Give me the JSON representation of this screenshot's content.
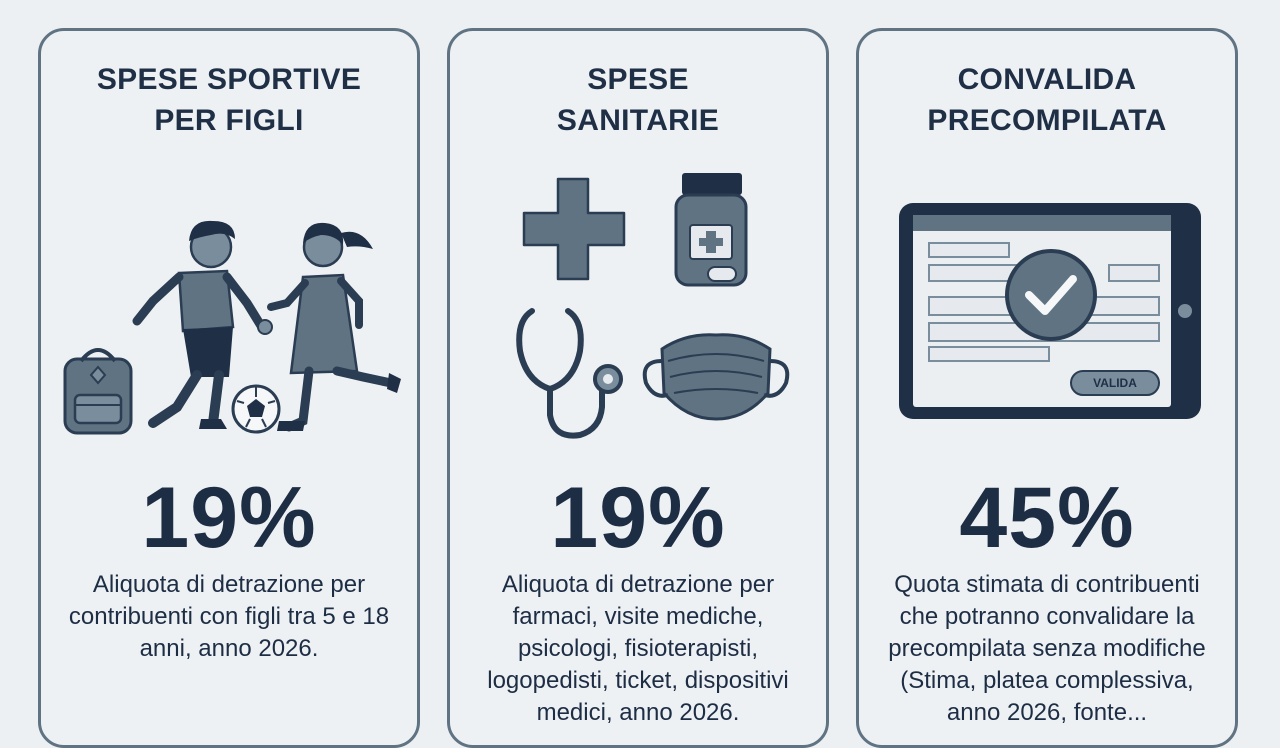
{
  "cards": [
    {
      "title_lines": [
        "SPESE SPORTIVE",
        "PER FIGLI"
      ],
      "value": "19%",
      "description": "Aliquota di detrazione per contribuenti con figli tra 5 e 18 anni, anno 2026.",
      "icons": [
        "child-boy-icon",
        "child-girl-icon",
        "backpack-icon",
        "soccer-ball-icon"
      ]
    },
    {
      "title_lines": [
        "SPESE",
        "SANITARIE"
      ],
      "value": "19%",
      "description": "Aliquota di detrazione per farmaci, visite mediche, psicologi, fisioterapisti, logopedisti, ticket, dispositivi medici, anno 2026.",
      "icons": [
        "medical-cross-icon",
        "medicine-bottle-icon",
        "stethoscope-icon",
        "face-mask-icon"
      ]
    },
    {
      "title_lines": [
        "CONVALIDA",
        "PRECOMPILATA"
      ],
      "value": "45%",
      "description": "Quota stimata di contribuenti che potranno convalidare la precompilata senza modifiche (Stima, platea complessiva, anno 2026, fonte...",
      "tablet_button": "VALIDA",
      "icons": [
        "tablet-icon",
        "check-circle-icon"
      ]
    }
  ],
  "colors": {
    "background": "#edf0f3",
    "card_border": "#5f7383",
    "illustration_fill": "#5f7383",
    "dark_text": "#1d2d44"
  }
}
